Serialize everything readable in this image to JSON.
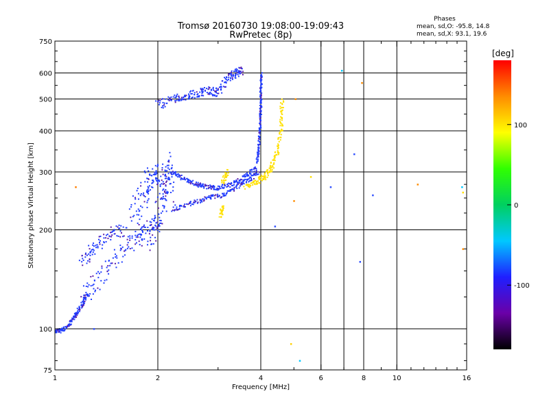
{
  "chart_data": {
    "type": "scatter",
    "title": "Tromsø 20160730 19:08:00-19:09:43",
    "subtitle": "RwPretec (8p)",
    "xlabel": "Frequency [MHz]",
    "ylabel": "Stationary phase Virtual Height [km]",
    "x_scale": "log",
    "y_scale": "log",
    "xlim": [
      1,
      16
    ],
    "ylim": [
      75,
      750
    ],
    "x_ticks": [
      1,
      2,
      4,
      6,
      8,
      10,
      16
    ],
    "x_tick_labels": [
      "1",
      "2",
      "4",
      "6",
      "8",
      "10",
      "16"
    ],
    "x_grid": [
      2,
      4,
      6,
      7,
      8,
      10
    ],
    "y_ticks": [
      75,
      100,
      200,
      300,
      400,
      500,
      600,
      750
    ],
    "y_tick_labels": [
      "75",
      "100",
      "200",
      "300",
      "400",
      "500",
      "600",
      "750"
    ],
    "y_grid": [
      100,
      200,
      300,
      400,
      500,
      600
    ],
    "grid": true,
    "stats": {
      "heading": "Phases",
      "line_o": "mean, sd,O: -95.8, 14.8",
      "line_x": "mean, sd,X:  93.1, 19.6"
    },
    "colorbar": {
      "label": "[deg]",
      "range": [
        -180,
        180
      ],
      "ticks": [
        -100,
        0,
        100
      ],
      "tick_labels": [
        "-100",
        "0",
        "100"
      ],
      "colors": [
        "#000000",
        "#6a00a8",
        "#1f1fff",
        "#00c8ff",
        "#00d060",
        "#30ff00",
        "#ffff00",
        "#ff8c00",
        "#ff0000"
      ]
    },
    "series": [
      {
        "phase_deg": -100,
        "color": "#1f3cff",
        "segments": [
          {
            "x": [
              1.0,
              1.05,
              1.1,
              1.15,
              1.2,
              1.25
            ],
            "y": [
              98,
              99,
              103,
              110,
              118,
              128
            ],
            "spread": 0.03
          },
          {
            "x": [
              1.2,
              1.35,
              1.5,
              1.7,
              1.85,
              2.0
            ],
            "y": [
              125,
              140,
              165,
              185,
              200,
              215
            ],
            "spread": 0.12
          },
          {
            "x": [
              1.7,
              1.8,
              1.9,
              2.0,
              2.1,
              2.2
            ],
            "y": [
              220,
              250,
              280,
              300,
              290,
              240
            ],
            "spread": 0.15
          },
          {
            "x": [
              1.9,
              2.0,
              2.1,
              2.2
            ],
            "y": [
              180,
              220,
              270,
              330
            ],
            "spread": 0.12
          },
          {
            "x": [
              2.2,
              2.5,
              2.8,
              3.1,
              3.4,
              3.7,
              3.95
            ],
            "y": [
              230,
              240,
              250,
              255,
              270,
              285,
              300
            ],
            "spread": 0.03
          },
          {
            "x": [
              2.2,
              2.4,
              2.6,
              2.8,
              3.0,
              3.3,
              3.6,
              3.9
            ],
            "y": [
              300,
              285,
              275,
              270,
              268,
              275,
              290,
              310
            ],
            "spread": 0.03
          },
          {
            "x": [
              3.9,
              3.95,
              3.98,
              4.0,
              4.0,
              4.02
            ],
            "y": [
              320,
              360,
              410,
              460,
              520,
              600
            ],
            "spread": 0.02
          },
          {
            "x": [
              2.0,
              2.2,
              2.4,
              2.6,
              2.8,
              3.0
            ],
            "y": [
              480,
              500,
              510,
              520,
              530,
              520
            ],
            "spread": 0.06
          },
          {
            "x": [
              3.0,
              3.2,
              3.4,
              3.5
            ],
            "y": [
              520,
              580,
              600,
              610
            ],
            "spread": 0.06
          },
          {
            "x": [
              1.2,
              1.3,
              1.45,
              1.6
            ],
            "y": [
              160,
              175,
              195,
              200
            ],
            "spread": 0.08
          }
        ]
      },
      {
        "phase_deg": 100,
        "color": "#ffe000",
        "segments": [
          {
            "x": [
              3.6,
              3.9,
              4.1,
              4.3,
              4.5,
              4.6,
              4.62
            ],
            "y": [
              270,
              280,
              290,
              310,
              350,
              420,
              500
            ],
            "spread": 0.04
          },
          {
            "x": [
              3.1,
              3.2
            ],
            "y": [
              280,
              300
            ],
            "spread": 0.05
          },
          {
            "x": [
              3.05,
              3.1
            ],
            "y": [
              220,
              235
            ],
            "spread": 0.04
          }
        ]
      }
    ],
    "outliers": [
      {
        "x": 1.15,
        "y": 270,
        "color": "#ff7f00"
      },
      {
        "x": 1.3,
        "y": 100,
        "color": "#3050ff"
      },
      {
        "x": 4.9,
        "y": 90,
        "color": "#ffd000"
      },
      {
        "x": 5.0,
        "y": 245,
        "color": "#ff8c00"
      },
      {
        "x": 5.05,
        "y": 500,
        "color": "#ff8c00"
      },
      {
        "x": 4.4,
        "y": 205,
        "color": "#3050ff"
      },
      {
        "x": 6.4,
        "y": 270,
        "color": "#3050ff"
      },
      {
        "x": 6.9,
        "y": 610,
        "color": "#00c8ff"
      },
      {
        "x": 7.5,
        "y": 340,
        "color": "#3050ff"
      },
      {
        "x": 7.8,
        "y": 160,
        "color": "#3050ff"
      },
      {
        "x": 7.9,
        "y": 560,
        "color": "#ff8c00"
      },
      {
        "x": 8.5,
        "y": 255,
        "color": "#3050ff"
      },
      {
        "x": 11.5,
        "y": 275,
        "color": "#ff8c00"
      },
      {
        "x": 15.5,
        "y": 270,
        "color": "#00c8ff"
      },
      {
        "x": 15.6,
        "y": 260,
        "color": "#ffe000"
      },
      {
        "x": 15.6,
        "y": 175,
        "color": "#ff8c00"
      },
      {
        "x": 5.6,
        "y": 290,
        "color": "#ffe000"
      },
      {
        "x": 5.2,
        "y": 80,
        "color": "#00c8ff"
      }
    ]
  }
}
